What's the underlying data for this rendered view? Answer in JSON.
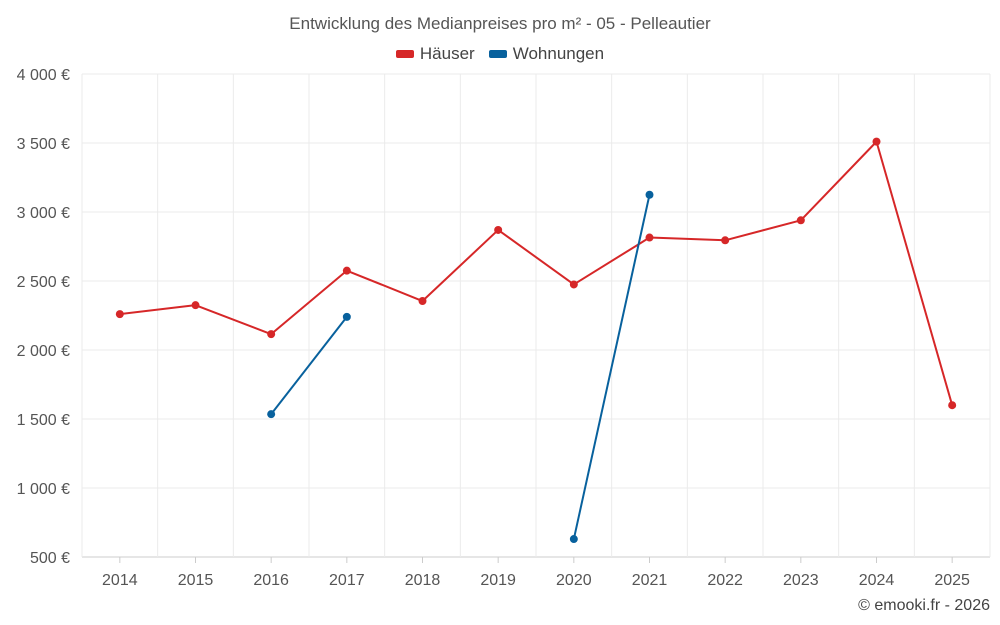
{
  "chart_data": {
    "type": "line",
    "title": "Entwicklung des Medianpreises pro m² - 05 - Pelleautier",
    "categories": [
      "2014",
      "2015",
      "2016",
      "2017",
      "2018",
      "2019",
      "2020",
      "2021",
      "2022",
      "2023",
      "2024",
      "2025"
    ],
    "y_ticks": [
      500,
      1000,
      1500,
      2000,
      2500,
      3000,
      3500,
      4000
    ],
    "y_tick_labels": [
      "500 €",
      "1 000 €",
      "1 500 €",
      "2 000 €",
      "2 500 €",
      "3 000 €",
      "3 500 €",
      "4 000 €"
    ],
    "ylim": [
      500,
      4000
    ],
    "grid": true,
    "legend_position": "top-center",
    "series": [
      {
        "name": "Häuser",
        "color": "#d62728",
        "values": [
          2260,
          2325,
          2115,
          2575,
          2355,
          2870,
          2475,
          2815,
          2795,
          2940,
          3510,
          1600
        ]
      },
      {
        "name": "Wohnungen",
        "color": "#08619d",
        "values": [
          null,
          null,
          1535,
          2240,
          null,
          null,
          630,
          3125,
          null,
          null,
          null,
          null
        ]
      }
    ],
    "copyright": "© emooki.fr - 2026"
  }
}
